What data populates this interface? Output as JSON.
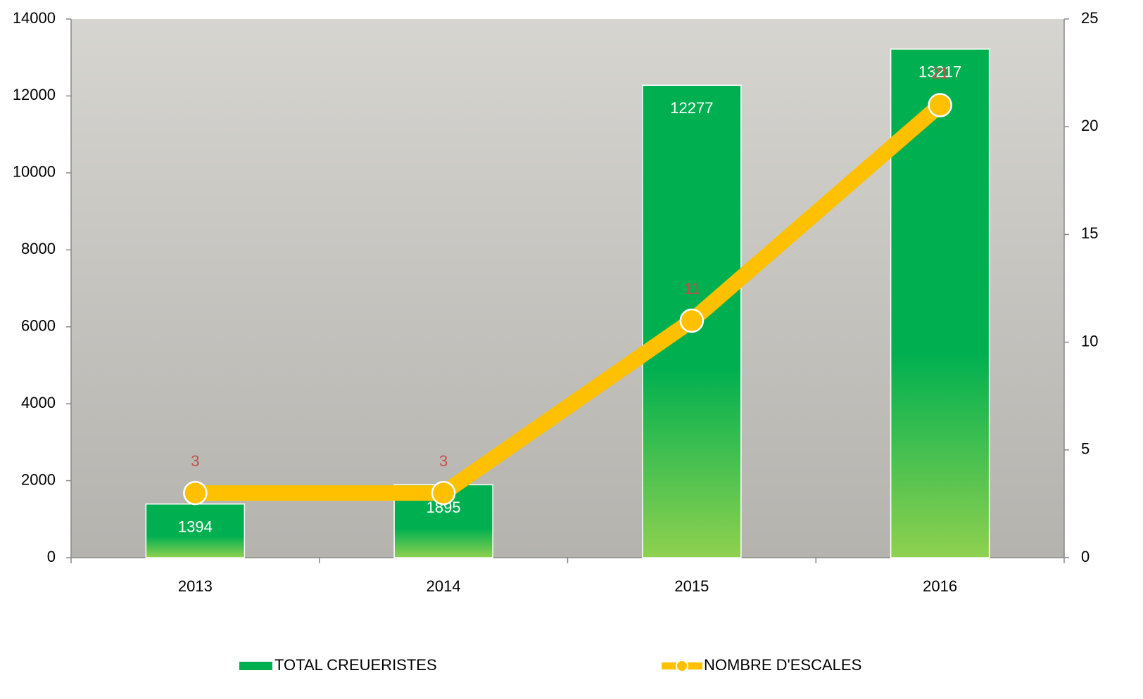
{
  "chart_data": {
    "type": "bar",
    "categories": [
      "2013",
      "2014",
      "2015",
      "2016"
    ],
    "series": [
      {
        "name": "TOTAL CREUERISTES",
        "type": "bar",
        "color": "#00b050",
        "values": [
          1394,
          1895,
          12277,
          13217
        ]
      },
      {
        "name": "NOMBRE D'ESCALES",
        "type": "line",
        "axis": "y2",
        "color": "#ffc000",
        "values": [
          3,
          3,
          11,
          21
        ]
      }
    ],
    "ylim": [
      0,
      14000
    ],
    "yticks": [
      0,
      2000,
      4000,
      6000,
      8000,
      10000,
      12000,
      14000
    ],
    "y2lim": [
      0,
      25
    ],
    "y2ticks": [
      0,
      5,
      10,
      15,
      20,
      25
    ],
    "legend": "bottom"
  }
}
